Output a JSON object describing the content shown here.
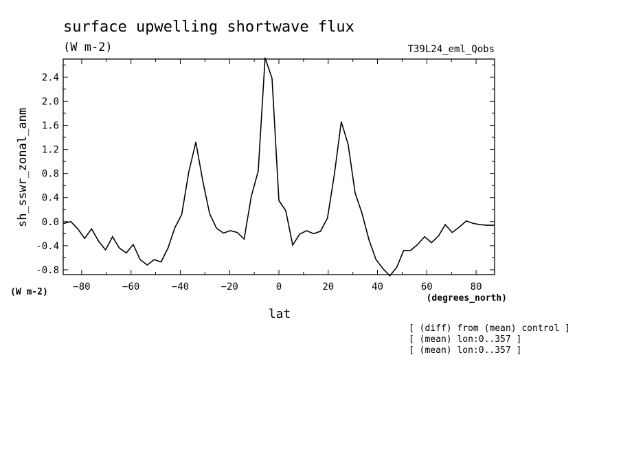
{
  "title": "surface upwelling shortwave flux",
  "units": "(W m-2)",
  "run_label": "T39L24_eml_Qobs",
  "y_units_label": "(W m-2)",
  "x_units_label": "(degrees_north)",
  "notes": [
    "[ (diff) from (mean) control ]",
    "[ (mean) lon:0..357 ]",
    "[ (mean) lon:0..357 ]"
  ],
  "chart_data": {
    "type": "line",
    "xlabel": "lat",
    "ylabel": "sh_sswr_zonal_anm",
    "xlim": [
      -87.5,
      87.5
    ],
    "ylim": [
      -0.88,
      2.7
    ],
    "x_ticks": [
      -80,
      -60,
      -40,
      -20,
      0,
      20,
      40,
      60,
      80
    ],
    "y_ticks": [
      -0.8,
      -0.4,
      0.0,
      0.4,
      0.8,
      1.2,
      1.6,
      2.0,
      2.4
    ],
    "grid": false,
    "x": [
      -87.2,
      -84.4,
      -81.6,
      -78.8,
      -76.0,
      -73.2,
      -70.3,
      -67.5,
      -64.7,
      -61.9,
      -59.1,
      -56.3,
      -53.4,
      -50.6,
      -47.8,
      -45.0,
      -42.2,
      -39.4,
      -36.6,
      -33.7,
      -30.9,
      -28.1,
      -25.3,
      -22.5,
      -19.7,
      -16.9,
      -14.1,
      -11.2,
      -8.4,
      -5.6,
      -2.8,
      0.0,
      2.8,
      5.6,
      8.4,
      11.2,
      14.1,
      16.9,
      19.7,
      22.5,
      25.3,
      28.1,
      30.9,
      33.7,
      36.6,
      39.4,
      42.2,
      45.0,
      47.8,
      50.6,
      53.4,
      56.3,
      59.1,
      61.9,
      64.7,
      67.5,
      70.3,
      73.2,
      76.0,
      78.8,
      81.6,
      84.4,
      87.2
    ],
    "y": [
      -0.03,
      0.0,
      -0.12,
      -0.28,
      -0.12,
      -0.32,
      -0.47,
      -0.25,
      -0.44,
      -0.52,
      -0.38,
      -0.63,
      -0.72,
      -0.63,
      -0.67,
      -0.44,
      -0.1,
      0.12,
      0.82,
      1.32,
      0.68,
      0.13,
      -0.11,
      -0.19,
      -0.15,
      -0.18,
      -0.29,
      0.42,
      0.84,
      2.72,
      2.38,
      0.35,
      0.18,
      -0.39,
      -0.21,
      -0.15,
      -0.2,
      -0.16,
      0.06,
      0.78,
      1.66,
      1.28,
      0.48,
      0.14,
      -0.31,
      -0.63,
      -0.78,
      -0.9,
      -0.76,
      -0.48,
      -0.48,
      -0.38,
      -0.25,
      -0.35,
      -0.24,
      -0.05,
      -0.18,
      -0.09,
      0.01,
      -0.03,
      -0.05,
      -0.06,
      -0.06
    ]
  }
}
